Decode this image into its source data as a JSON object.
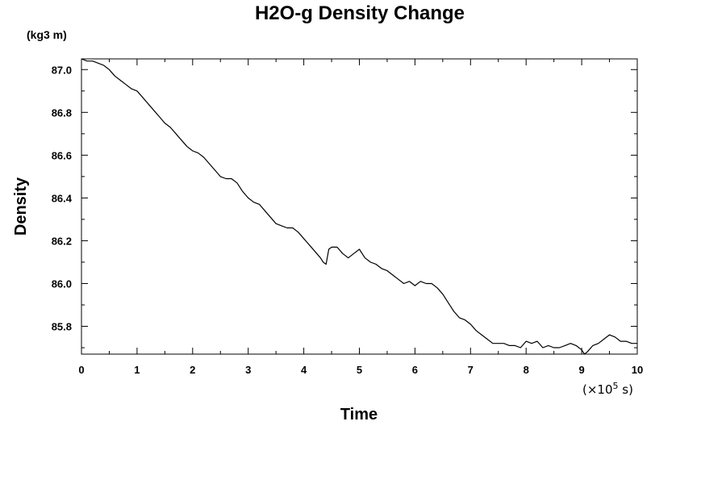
{
  "chart_data": {
    "type": "line",
    "title": "H2O-g Density Change",
    "xlabel": "Time",
    "ylabel": "Density",
    "yunit": "(kg3 m)",
    "xscale_note": "(×10",
    "xscale_exp": "5",
    "xscale_unit": " s)",
    "xlim": [
      0,
      10
    ],
    "ylim": [
      85.67,
      87.05
    ],
    "xticks": [
      0,
      1,
      2,
      3,
      4,
      5,
      6,
      7,
      8,
      9,
      10
    ],
    "xtick_labels": [
      "0",
      "1",
      "2",
      "3",
      "4",
      "5",
      "6",
      "7",
      "8",
      "9",
      "10"
    ],
    "yticks": [
      85.8,
      86.0,
      86.2,
      86.4,
      86.6,
      86.8,
      87.0
    ],
    "ytick_labels": [
      "85.8",
      "86.0",
      "86.2",
      "86.4",
      "86.6",
      "86.8",
      "87.0"
    ],
    "grid": false,
    "color": "#000000",
    "series": [
      {
        "x": [
          0,
          0.1,
          0.2,
          0.3,
          0.4,
          0.5,
          0.6,
          0.7,
          0.8,
          0.9,
          1.0,
          1.1,
          1.2,
          1.3,
          1.4,
          1.5,
          1.6,
          1.7,
          1.8,
          1.9,
          2.0,
          2.1,
          2.2,
          2.3,
          2.4,
          2.5,
          2.6,
          2.7,
          2.8,
          2.9,
          3.0,
          3.1,
          3.2,
          3.3,
          3.4,
          3.5,
          3.6,
          3.7,
          3.8,
          3.9,
          4.0,
          4.1,
          4.2,
          4.3,
          4.35,
          4.4,
          4.45,
          4.5,
          4.6,
          4.7,
          4.8,
          4.9,
          5.0,
          5.1,
          5.2,
          5.3,
          5.4,
          5.5,
          5.6,
          5.7,
          5.8,
          5.9,
          6.0,
          6.1,
          6.2,
          6.3,
          6.4,
          6.5,
          6.6,
          6.7,
          6.8,
          6.9,
          7.0,
          7.1,
          7.2,
          7.3,
          7.4,
          7.5,
          7.6,
          7.7,
          7.8,
          7.9,
          8.0,
          8.1,
          8.2,
          8.3,
          8.4,
          8.5,
          8.6,
          8.7,
          8.8,
          8.9,
          9.0,
          9.05,
          9.1,
          9.2,
          9.3,
          9.4,
          9.5,
          9.6,
          9.7,
          9.8,
          9.9,
          10.0
        ],
        "y": [
          87.05,
          87.04,
          87.04,
          87.03,
          87.02,
          87.0,
          86.97,
          86.95,
          86.93,
          86.91,
          86.9,
          86.87,
          86.84,
          86.81,
          86.78,
          86.75,
          86.73,
          86.7,
          86.67,
          86.64,
          86.62,
          86.61,
          86.59,
          86.56,
          86.53,
          86.5,
          86.49,
          86.49,
          86.47,
          86.43,
          86.4,
          86.38,
          86.37,
          86.34,
          86.31,
          86.28,
          86.27,
          86.26,
          86.26,
          86.24,
          86.21,
          86.18,
          86.15,
          86.12,
          86.1,
          86.09,
          86.16,
          86.17,
          86.17,
          86.14,
          86.12,
          86.14,
          86.16,
          86.12,
          86.1,
          86.09,
          86.07,
          86.06,
          86.04,
          86.02,
          86.0,
          86.01,
          85.99,
          86.01,
          86.0,
          86.0,
          85.98,
          85.95,
          85.91,
          85.87,
          85.84,
          85.83,
          85.81,
          85.78,
          85.76,
          85.74,
          85.72,
          85.72,
          85.72,
          85.71,
          85.71,
          85.7,
          85.73,
          85.72,
          85.73,
          85.7,
          85.71,
          85.7,
          85.7,
          85.71,
          85.72,
          85.71,
          85.69,
          85.67,
          85.68,
          85.71,
          85.72,
          85.74,
          85.76,
          85.75,
          85.73,
          85.73,
          85.72,
          85.72
        ]
      }
    ]
  }
}
